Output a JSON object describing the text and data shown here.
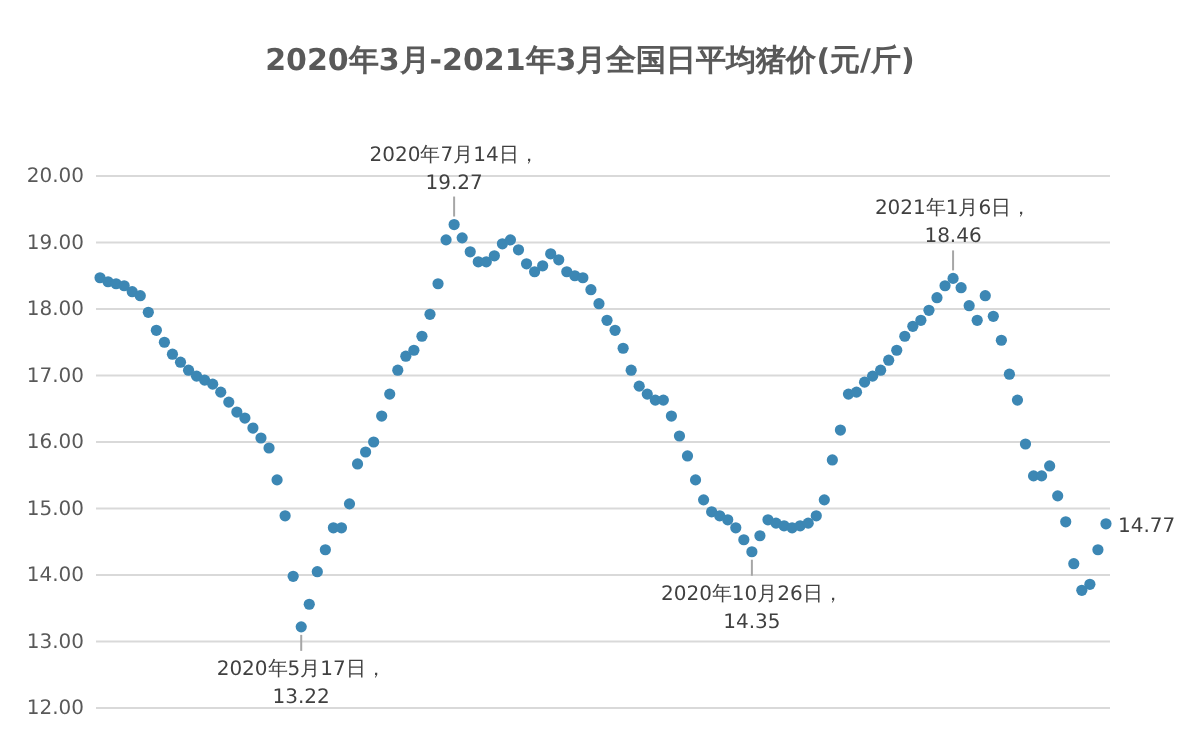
{
  "chart_data": {
    "type": "scatter",
    "title": "2020年3月-2021年3月全国日平均猪价(元/斤)",
    "categories": [
      null,
      null,
      null,
      null,
      null,
      null,
      null,
      null,
      null,
      null,
      null,
      null,
      null,
      null,
      null,
      null,
      null,
      null,
      null,
      null,
      null,
      null,
      null,
      null,
      null,
      null,
      null,
      null,
      null,
      null,
      null,
      null,
      null,
      null,
      null,
      null,
      null,
      null,
      null,
      null,
      null,
      null,
      null,
      null,
      null,
      null,
      null,
      null,
      null,
      null,
      null,
      null,
      null,
      null,
      null,
      null,
      null,
      null,
      null,
      null,
      null,
      null,
      null,
      null,
      null,
      null,
      null,
      null,
      null,
      null,
      null,
      null,
      null,
      null,
      null,
      null,
      null,
      null,
      null,
      null,
      null,
      null,
      null,
      null,
      null,
      null,
      null,
      null,
      null,
      null,
      null,
      null,
      null,
      null,
      null,
      null,
      null,
      null,
      null,
      null,
      null,
      null,
      null,
      null,
      null,
      null,
      null,
      null,
      null,
      null,
      null,
      null,
      null,
      null,
      null,
      null,
      null,
      null,
      null,
      null,
      null,
      null,
      null,
      null,
      null,
      null
    ],
    "series": [
      {
        "color": "#3c87b4",
        "values": [
          18.47,
          18.41,
          18.38,
          18.35,
          18.26,
          18.2,
          17.95,
          17.68,
          17.5,
          17.32,
          17.2,
          17.08,
          16.99,
          16.93,
          16.87,
          16.75,
          16.6,
          16.45,
          16.36,
          16.21,
          16.06,
          15.91,
          15.43,
          14.89,
          13.98,
          13.22,
          13.56,
          14.05,
          14.38,
          14.71,
          14.71,
          15.07,
          15.67,
          15.85,
          16.0,
          16.39,
          16.72,
          17.08,
          17.29,
          17.38,
          17.59,
          17.92,
          18.38,
          19.04,
          19.27,
          19.07,
          18.86,
          18.71,
          18.71,
          18.8,
          18.98,
          19.04,
          18.89,
          18.68,
          18.56,
          18.65,
          18.83,
          18.74,
          18.56,
          18.5,
          18.47,
          18.29,
          18.08,
          17.83,
          17.68,
          17.41,
          17.08,
          16.84,
          16.72,
          16.63,
          16.63,
          16.39,
          16.09,
          15.79,
          15.43,
          15.13,
          14.95,
          14.89,
          14.83,
          14.71,
          14.53,
          14.35,
          14.59,
          14.83,
          14.78,
          14.74,
          14.71,
          14.74,
          14.78,
          14.89,
          15.13,
          15.73,
          16.18,
          16.72,
          16.75,
          16.9,
          16.99,
          17.08,
          17.23,
          17.38,
          17.59,
          17.74,
          17.83,
          17.98,
          18.17,
          18.35,
          18.46,
          18.32,
          18.05,
          17.83,
          18.2,
          17.89,
          17.53,
          17.02,
          16.63,
          15.97,
          15.49,
          15.49,
          15.64,
          15.19,
          14.8,
          14.17,
          13.77,
          13.86,
          14.38,
          14.77
        ]
      }
    ],
    "ylim": [
      12,
      20
    ],
    "yticks": [
      {
        "value": 12,
        "label": "12.00"
      },
      {
        "value": 13,
        "label": "13.00"
      },
      {
        "value": 14,
        "label": "14.00"
      },
      {
        "value": 15,
        "label": "15.00"
      },
      {
        "value": 16,
        "label": "16.00"
      },
      {
        "value": 17,
        "label": "17.00"
      },
      {
        "value": 18,
        "label": "18.00"
      },
      {
        "value": 19,
        "label": "19.00"
      },
      {
        "value": 20,
        "label": "20.00"
      }
    ],
    "grid": "y",
    "marker": "circle",
    "tick_labels": "y",
    "annotations": [
      {
        "text": "2020年5月17日，\n13.22",
        "y": 13.22
      },
      {
        "text": "2020年7月14日，\n19.27",
        "y": 19.27
      },
      {
        "text": "2020年10月26日，\n14.35",
        "y": 14.35
      },
      {
        "text": "2021年1月6日，\n18.46",
        "y": 18.46
      },
      "14.77"
    ]
  }
}
